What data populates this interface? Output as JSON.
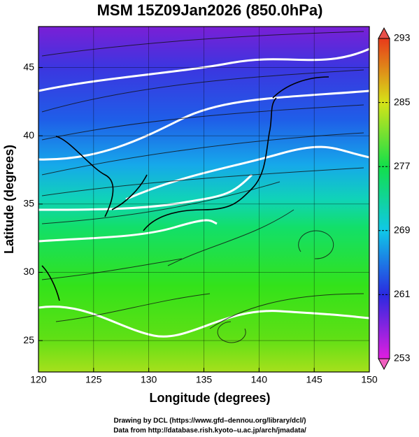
{
  "chart_data": {
    "type": "map",
    "title": "MSM 15Z09Jan2026 (850.0hPa)",
    "x_label": "Longitude (degrees)",
    "y_label": "Latitude  (degrees)",
    "xlim": [
      120,
      150
    ],
    "xticks": [
      120,
      125,
      130,
      135,
      140,
      145,
      150
    ],
    "ylim": [
      22.7,
      48
    ],
    "yticks": [
      25,
      30,
      35,
      40,
      45
    ],
    "colorbar_lim": [
      253,
      293
    ],
    "colorbar_ticks": [
      253,
      261,
      269,
      277,
      285,
      293
    ],
    "grid": true,
    "footer": [
      "Drawing by DCL (https://www.gfd–dennou.org/library/dcl/)",
      "Data from http://database.rish.kyoto–u.ac.jp/arch/jmadata/"
    ]
  }
}
